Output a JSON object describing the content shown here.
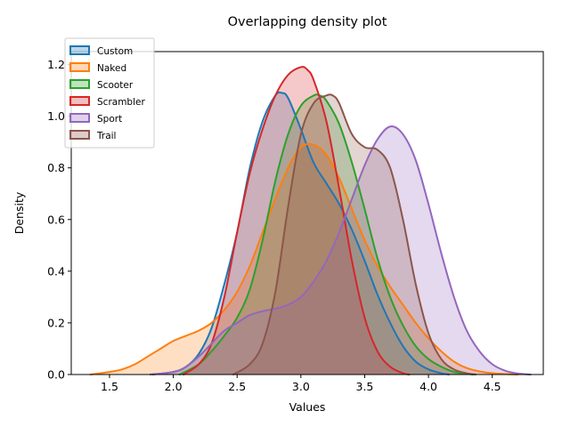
{
  "chart_data": {
    "type": "area",
    "title": "Overlapping density plot",
    "xlabel": "Values",
    "ylabel": "Density",
    "xlim": [
      1.2,
      4.9
    ],
    "ylim": [
      0,
      1.25
    ],
    "xticks": [
      "1.5",
      "2.0",
      "2.5",
      "3.0",
      "3.5",
      "4.0",
      "4.5"
    ],
    "yticks": [
      "0.0",
      "0.2",
      "0.4",
      "0.6",
      "0.8",
      "1.0",
      "1.2"
    ],
    "grid": false,
    "legend_position": "top-left",
    "series": [
      {
        "name": "Custom",
        "color": "#1f77b4",
        "x": [
          1.84,
          2.0,
          2.1,
          2.2,
          2.3,
          2.4,
          2.5,
          2.6,
          2.7,
          2.8,
          2.85,
          2.9,
          3.0,
          3.1,
          3.2,
          3.3,
          3.4,
          3.5,
          3.6,
          3.7,
          3.8,
          3.9,
          4.0,
          4.1,
          4.16
        ],
        "y": [
          0.0,
          0.01,
          0.03,
          0.08,
          0.18,
          0.35,
          0.55,
          0.8,
          0.98,
          1.08,
          1.09,
          1.07,
          0.95,
          0.82,
          0.74,
          0.66,
          0.56,
          0.44,
          0.31,
          0.2,
          0.11,
          0.05,
          0.02,
          0.005,
          0.0
        ]
      },
      {
        "name": "Naked",
        "color": "#ff7f0e",
        "x": [
          1.35,
          1.5,
          1.6,
          1.7,
          1.8,
          1.9,
          2.0,
          2.1,
          2.2,
          2.3,
          2.4,
          2.5,
          2.6,
          2.7,
          2.8,
          2.9,
          3.0,
          3.1,
          3.2,
          3.3,
          3.4,
          3.5,
          3.6,
          3.7,
          3.8,
          3.9,
          4.0,
          4.1,
          4.2,
          4.3,
          4.4,
          4.5,
          4.6,
          4.7
        ],
        "y": [
          0.0,
          0.01,
          0.02,
          0.04,
          0.07,
          0.1,
          0.13,
          0.15,
          0.17,
          0.2,
          0.25,
          0.32,
          0.42,
          0.55,
          0.68,
          0.8,
          0.88,
          0.89,
          0.85,
          0.76,
          0.64,
          0.52,
          0.42,
          0.34,
          0.27,
          0.2,
          0.14,
          0.09,
          0.05,
          0.025,
          0.012,
          0.005,
          0.002,
          0.0
        ]
      },
      {
        "name": "Scooter",
        "color": "#2ca02c",
        "x": [
          2.05,
          2.2,
          2.3,
          2.4,
          2.5,
          2.6,
          2.7,
          2.8,
          2.9,
          3.0,
          3.1,
          3.15,
          3.2,
          3.3,
          3.4,
          3.5,
          3.6,
          3.7,
          3.8,
          3.9,
          4.0,
          4.1,
          4.2,
          4.3,
          4.35
        ],
        "y": [
          0.0,
          0.04,
          0.09,
          0.15,
          0.22,
          0.33,
          0.52,
          0.75,
          0.93,
          1.04,
          1.08,
          1.08,
          1.06,
          0.97,
          0.82,
          0.64,
          0.45,
          0.3,
          0.19,
          0.11,
          0.06,
          0.03,
          0.01,
          0.003,
          0.0
        ]
      },
      {
        "name": "Scrambler",
        "color": "#d62728",
        "x": [
          2.08,
          2.2,
          2.3,
          2.4,
          2.5,
          2.6,
          2.7,
          2.8,
          2.9,
          3.0,
          3.05,
          3.1,
          3.2,
          3.3,
          3.4,
          3.5,
          3.6,
          3.7,
          3.8,
          3.85
        ],
        "y": [
          0.0,
          0.04,
          0.12,
          0.3,
          0.55,
          0.78,
          0.95,
          1.08,
          1.16,
          1.19,
          1.18,
          1.14,
          0.98,
          0.72,
          0.44,
          0.22,
          0.09,
          0.03,
          0.005,
          0.0
        ]
      },
      {
        "name": "Sport",
        "color": "#9467bd",
        "x": [
          1.82,
          2.0,
          2.1,
          2.2,
          2.3,
          2.4,
          2.5,
          2.6,
          2.7,
          2.8,
          2.9,
          3.0,
          3.1,
          3.2,
          3.3,
          3.4,
          3.5,
          3.6,
          3.7,
          3.8,
          3.9,
          4.0,
          4.1,
          4.2,
          4.3,
          4.4,
          4.5,
          4.6,
          4.7,
          4.8
        ],
        "y": [
          0.0,
          0.01,
          0.03,
          0.07,
          0.12,
          0.17,
          0.2,
          0.23,
          0.245,
          0.255,
          0.27,
          0.3,
          0.36,
          0.44,
          0.55,
          0.68,
          0.81,
          0.91,
          0.96,
          0.93,
          0.83,
          0.66,
          0.47,
          0.3,
          0.17,
          0.09,
          0.04,
          0.015,
          0.004,
          0.0
        ]
      },
      {
        "name": "Trail",
        "color": "#8c564b",
        "x": [
          2.47,
          2.6,
          2.7,
          2.8,
          2.9,
          3.0,
          3.1,
          3.2,
          3.25,
          3.3,
          3.4,
          3.5,
          3.6,
          3.7,
          3.8,
          3.9,
          4.0,
          4.1,
          4.2,
          4.3,
          4.37
        ],
        "y": [
          0.0,
          0.04,
          0.12,
          0.32,
          0.65,
          0.93,
          1.05,
          1.08,
          1.08,
          1.05,
          0.93,
          0.88,
          0.87,
          0.8,
          0.6,
          0.35,
          0.16,
          0.06,
          0.02,
          0.005,
          0.0
        ]
      }
    ]
  }
}
